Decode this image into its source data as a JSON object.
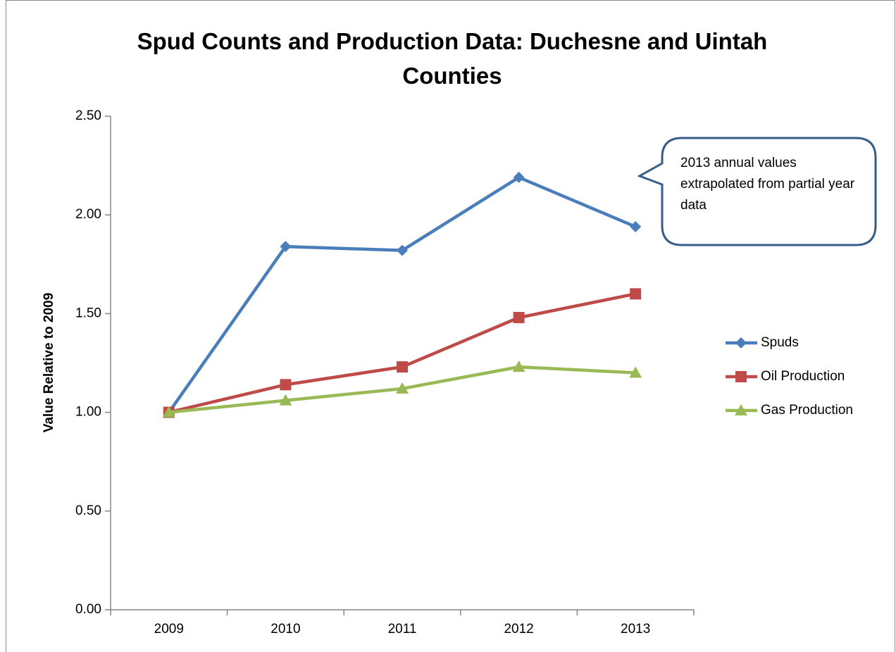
{
  "chart_data": {
    "type": "line",
    "title": "Spud Counts and Production Data: Duchesne and Uintah Counties",
    "y_label": "Value Relative to 2009",
    "annotation": "2013 annual values extrapolated from partial year data",
    "categories": [
      "2009",
      "2010",
      "2011",
      "2012",
      "2013"
    ],
    "series": [
      {
        "name": "Spuds",
        "color": "#4a7ebb",
        "marker": "diamond",
        "values": [
          1.0,
          1.84,
          1.82,
          2.19,
          1.94
        ]
      },
      {
        "name": "Oil Production",
        "color": "#be4b48",
        "marker": "square",
        "values": [
          1.0,
          1.14,
          1.23,
          1.48,
          1.6
        ]
      },
      {
        "name": "Gas Production",
        "color": "#98b954",
        "marker": "triangle",
        "values": [
          1.0,
          1.06,
          1.12,
          1.23,
          1.2
        ]
      }
    ],
    "ylim": [
      0,
      2.5
    ],
    "yticks": [
      {
        "value": 0,
        "label": "0.00"
      },
      {
        "value": 0.5,
        "label": "0.50"
      },
      {
        "value": 1,
        "label": "1.00"
      },
      {
        "value": 1.5,
        "label": "1.50"
      },
      {
        "value": 2,
        "label": "2.00"
      },
      {
        "value": 2.5,
        "label": "2.50"
      }
    ],
    "grid": false,
    "legend": "right"
  }
}
